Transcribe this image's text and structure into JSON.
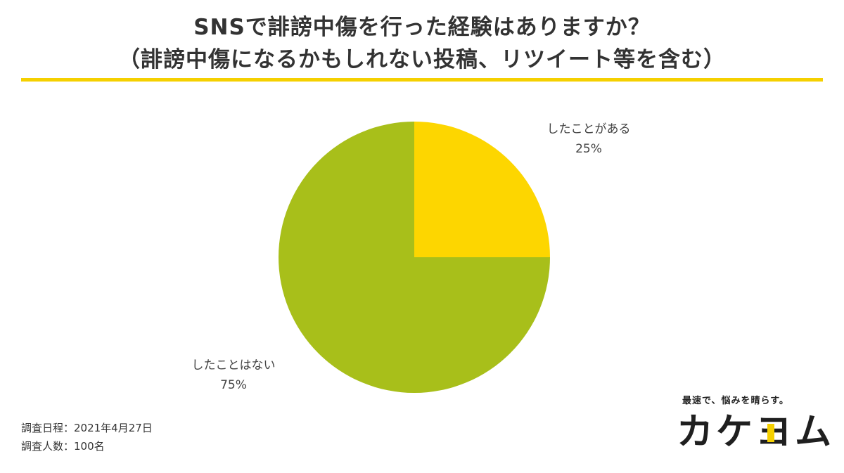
{
  "title": {
    "line1": "SNSで誹謗中傷を行った経験はありますか？",
    "line2": "（誹謗中傷になるかもしれない投稿、リツイート等を含む）"
  },
  "colors": {
    "accent_rule": "#f5d000",
    "yes_slice": "#fdd600",
    "no_slice": "#a8bf1a",
    "brand_accent": "#f5d000"
  },
  "chart_data": {
    "type": "pie",
    "categories": [
      "したことがある",
      "したことはない"
    ],
    "values": [
      25,
      75
    ],
    "value_labels": [
      "25%",
      "75%"
    ],
    "start_angle_deg": 0,
    "direction": "clockwise"
  },
  "labels": {
    "yes": {
      "name": "したことがある",
      "pct": "25%"
    },
    "no": {
      "name": "したことはない",
      "pct": "75%"
    }
  },
  "footer": {
    "survey_date": "調査日程：2021年4月27日",
    "survey_count": "調査人数：100名"
  },
  "brand": {
    "tagline": "最速で、悩みを晴らす。",
    "logo": "カケヨム"
  }
}
